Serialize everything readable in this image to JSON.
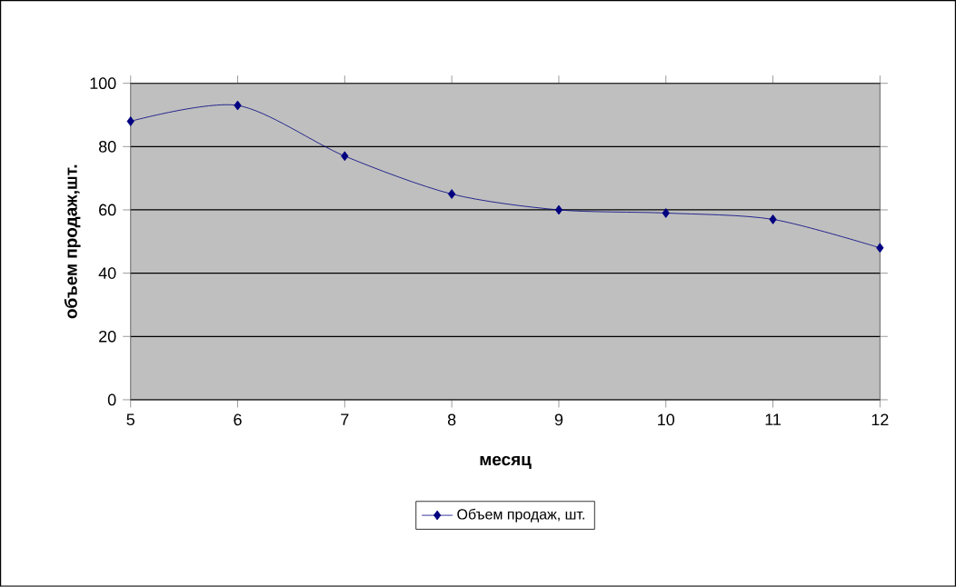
{
  "chart_data": {
    "type": "line",
    "xlabel": "месяц",
    "ylabel": "объем продаж,шт.",
    "x": [
      5,
      6,
      7,
      8,
      9,
      10,
      11,
      12
    ],
    "series": [
      {
        "name": "Объем продаж, шт.",
        "color": "#000080",
        "values": [
          88,
          93,
          77,
          65,
          60,
          59,
          57,
          48
        ]
      }
    ],
    "xlim": [
      5,
      12
    ],
    "xticks": [
      5,
      6,
      7,
      8,
      9,
      10,
      11,
      12
    ],
    "ylim": [
      0,
      100
    ],
    "yticks": [
      0,
      20,
      40,
      60,
      80,
      100
    ],
    "grid": "y",
    "legend": "bottom",
    "marker": "diamond",
    "line_style": "solid"
  }
}
